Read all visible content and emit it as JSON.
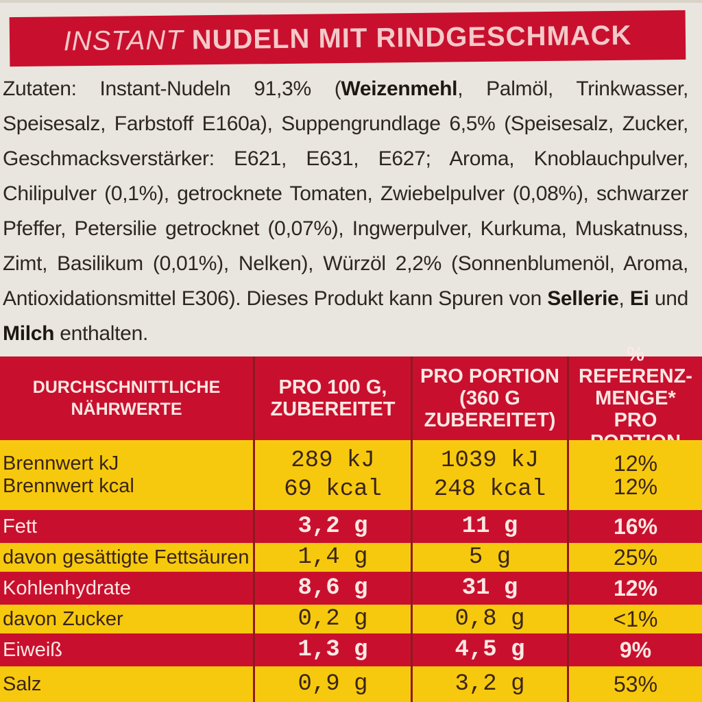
{
  "title": {
    "prefix": "INSTANT",
    "main": "NUDELN MIT RINDGESCHMACK"
  },
  "ingredients": {
    "p1": "Zutaten: Instant-Nudeln 91,3% (",
    "b1": "Weizenmehl",
    "p2": ", Palmöl, Trinkwasser, Speisesalz, Farbstoff E160a), Suppengrundlage 6,5% (Speisesalz, Zucker, Geschmacksverstärker: E621, E631, E627; Aroma, Knoblauchpulver, Chilipulver (0,1%), getrocknete Tomaten, Zwiebelpulver (0,08%), schwarzer Pfeffer, Petersilie getrocknet (0,07%), Ingwerpulver, Kurkuma, Muskatnuss, Zimt, Basilikum (0,01%), Nelken), Würzöl 2,2% (Sonnenblumenöl, Aroma, Antioxidationsmittel E306). Dieses Produkt kann Spuren von ",
    "b2": "Sellerie",
    "p3": ", ",
    "b3": "Ei",
    "p4": " und ",
    "b4": "Milch",
    "p5": " enthalten."
  },
  "table": {
    "headers": [
      "DURCHSCHNITTLICHE NÄHRWERTE",
      "PRO 100 g, ZUBEREITET",
      "PRO PORTION (360 g ZUBEREITET)",
      "% REFERENZ-MENGE* PRO PORTION"
    ],
    "rows": [
      {
        "label": "Brennwert kJ",
        "label2": "Brennwert kcal",
        "per100": "289 kJ",
        "per100_2": "69 kcal",
        "portion": "1039 kJ",
        "portion_2": "248 kcal",
        "ref": "12%",
        "ref_2": "12%",
        "style": "yel"
      },
      {
        "label": "Fett",
        "per100": "3,2 g",
        "portion": "11 g",
        "ref": "16%",
        "style": "red"
      },
      {
        "label": "davon gesättigte Fettsäuren",
        "per100": "1,4 g",
        "portion": "5 g",
        "ref": "25%",
        "style": "yel"
      },
      {
        "label": "Kohlenhydrate",
        "per100": "8,6 g",
        "portion": "31 g",
        "ref": "12%",
        "style": "red"
      },
      {
        "label": "davon Zucker",
        "per100": "0,2 g",
        "portion": "0,8 g",
        "ref": "<1%",
        "style": "yel"
      },
      {
        "label": "Eiweiß",
        "per100": "1,3 g",
        "portion": "4,5 g",
        "ref": "9%",
        "style": "red"
      },
      {
        "label": "Salz",
        "per100": "0,9 g",
        "portion": "3,2 g",
        "ref": "53%",
        "style": "yel"
      }
    ]
  },
  "colors": {
    "red": "#c8102e",
    "yellow": "#f6c90e",
    "paper": "#e9e6df"
  }
}
